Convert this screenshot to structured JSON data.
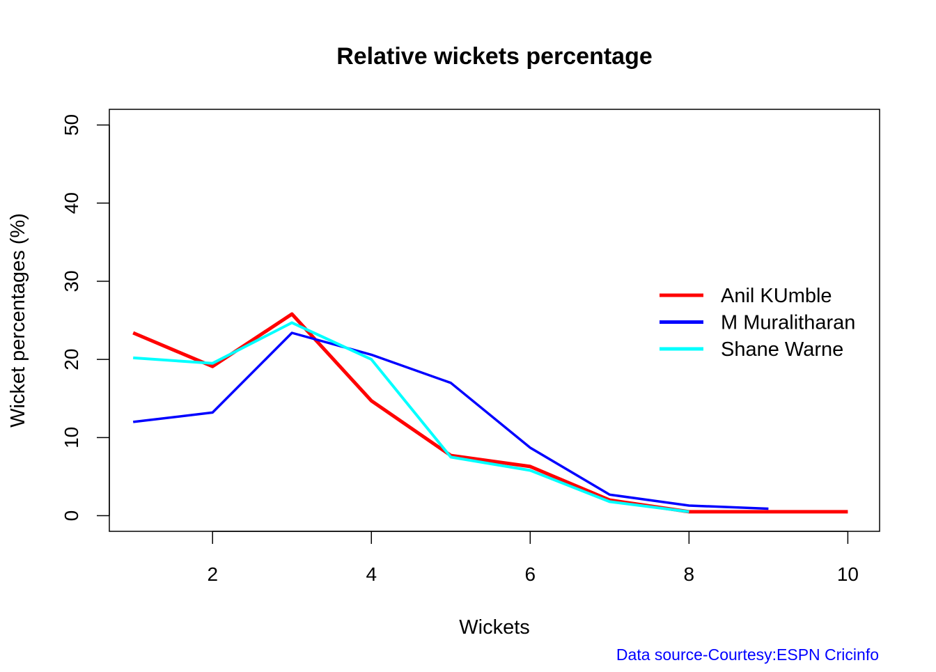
{
  "chart_data": {
    "type": "line",
    "title": "Relative wickets percentage",
    "xlabel": "Wickets",
    "ylabel": "Wicket percentages (%)",
    "xlim": [
      0.7,
      10.4
    ],
    "ylim": [
      -2,
      52
    ],
    "xticks": [
      2,
      4,
      6,
      8,
      10
    ],
    "yticks": [
      0,
      10,
      20,
      30,
      40,
      50
    ],
    "grid": false,
    "legend_position": "right",
    "series": [
      {
        "name": "Anil KUmble",
        "color": "#ff0000",
        "x": [
          1,
          2,
          3,
          4,
          5,
          6,
          7,
          8,
          9,
          10
        ],
        "values": [
          23.4,
          19.1,
          25.8,
          14.7,
          7.7,
          6.3,
          2.0,
          0.5,
          0.5,
          0.5
        ]
      },
      {
        "name": "M Muralitharan",
        "color": "#0000ff",
        "x": [
          1,
          2,
          3,
          4,
          5,
          6,
          7,
          8,
          9
        ],
        "values": [
          12.0,
          13.2,
          23.4,
          20.6,
          17.0,
          8.7,
          2.7,
          1.3,
          0.9
        ]
      },
      {
        "name": "Shane Warne",
        "color": "#00ffff",
        "x": [
          1,
          2,
          3,
          4,
          5,
          6,
          7,
          8
        ],
        "values": [
          20.2,
          19.5,
          24.7,
          20.0,
          7.5,
          5.8,
          1.8,
          0.5
        ]
      }
    ],
    "annotation": "Data source-Courtesy:ESPN Cricinfo",
    "annotation_color": "#0000ff"
  }
}
